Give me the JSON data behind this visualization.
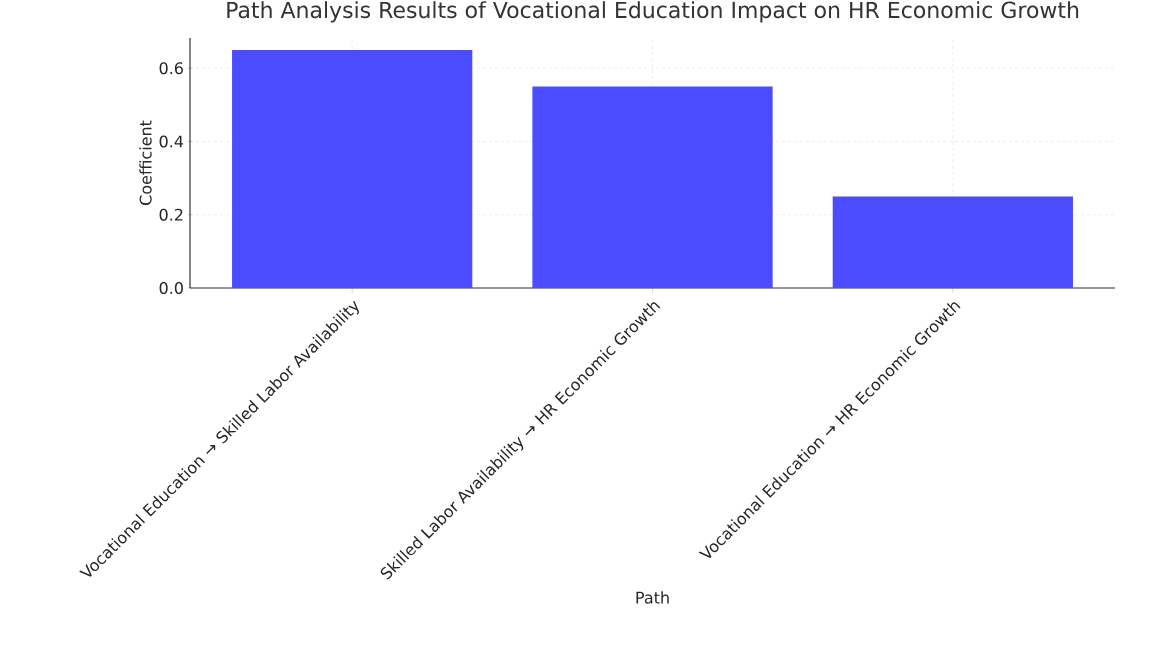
{
  "chart_data": {
    "type": "bar",
    "title": "Path Analysis Results of Vocational Education Impact on HR Economic Growth",
    "xlabel": "Path",
    "ylabel": "Coefficient",
    "categories": [
      "Vocational Education → Skilled Labor Availability",
      "Skilled Labor Availability → HR Economic Growth",
      "Vocational Education → HR Economic Growth"
    ],
    "values": [
      0.65,
      0.55,
      0.25
    ],
    "color": "#4b4bff",
    "ylim": [
      0,
      0.6825
    ],
    "yticks": [
      {
        "value": 0,
        "label": "0.0"
      },
      {
        "value": 0.2,
        "label": "0.2"
      },
      {
        "value": 0.4,
        "label": "0.4"
      },
      {
        "value": 0.6,
        "label": "0.6"
      }
    ],
    "grid": true
  }
}
